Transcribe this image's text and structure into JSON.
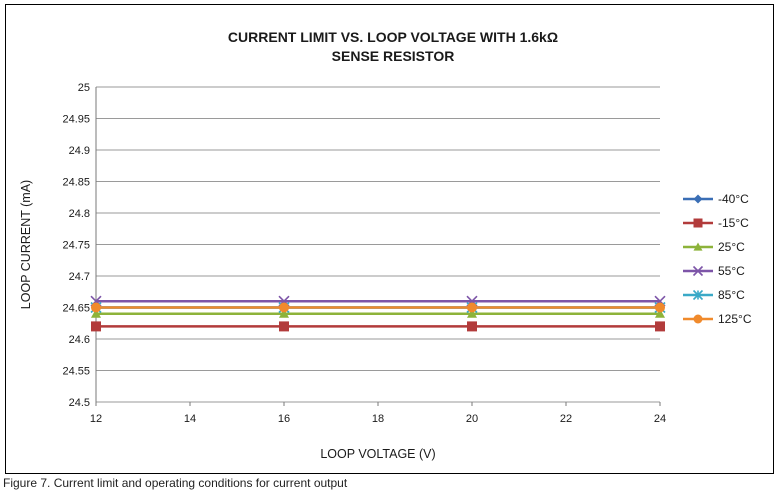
{
  "chart_data": {
    "type": "line",
    "title_lines": [
      "CURRENT LIMIT VS. LOOP VOLTAGE WITH 1.6kΩ",
      "SENSE RESISTOR"
    ],
    "xlabel": "LOOP VOLTAGE (V)",
    "ylabel": "LOOP CURRENT (mA)",
    "x": [
      12,
      16,
      20,
      24
    ],
    "xlim": [
      12,
      24
    ],
    "ylim": [
      24.5,
      25
    ],
    "xticks": [
      "12",
      "14",
      "16",
      "18",
      "20",
      "22",
      "24"
    ],
    "yticks": [
      "24.5",
      "24.55",
      "24.6",
      "24.65",
      "24.7",
      "24.75",
      "24.8",
      "24.85",
      "24.9",
      "24.95",
      "25"
    ],
    "grid": "horizontal",
    "legend_position": "right",
    "series": [
      {
        "name": "-40°C",
        "values": [
          24.65,
          24.65,
          24.65,
          24.65
        ],
        "color": "#3a6eb5",
        "marker": "diamond"
      },
      {
        "name": "-15°C",
        "values": [
          24.62,
          24.62,
          24.62,
          24.62
        ],
        "color": "#b23b3b",
        "marker": "square"
      },
      {
        "name": "25°C",
        "values": [
          24.64,
          24.64,
          24.64,
          24.64
        ],
        "color": "#8db33a",
        "marker": "triangle"
      },
      {
        "name": "55°C",
        "values": [
          24.66,
          24.66,
          24.66,
          24.66
        ],
        "color": "#7d55a8",
        "marker": "x"
      },
      {
        "name": "85°C",
        "values": [
          24.65,
          24.65,
          24.65,
          24.65
        ],
        "color": "#3aa9c7",
        "marker": "star"
      },
      {
        "name": "125°C",
        "values": [
          24.65,
          24.65,
          24.65,
          24.65
        ],
        "color": "#f08a2c",
        "marker": "circle"
      }
    ]
  },
  "caption": "Figure 7. Current limit and operating conditions for current output"
}
